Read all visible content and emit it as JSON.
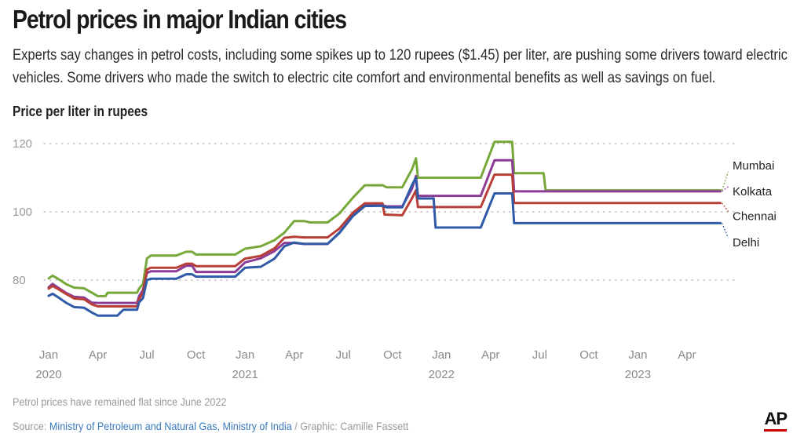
{
  "header": {
    "title": "Petrol prices in major Indian cities",
    "subtitle": "Experts say changes in petrol costs, including some spikes up to 120 rupees ($1.45) per liter, are pushing some drivers toward electric vehicles. Some drivers who made the switch to electric cite comfort and environmental benefits as well as savings on fuel.",
    "unit_label": "Price per liter in rupees"
  },
  "footer": {
    "note": "Petrol prices have remained flat since June 2022",
    "source_prefix": "Source: ",
    "source_link": "Ministry of Petroleum and Natural Gas, Ministry of India",
    "source_suffix": " / Graphic: Camille Fassett",
    "logo": "AP"
  },
  "chart_data": {
    "type": "line",
    "title": "Petrol prices in major Indian cities",
    "ylabel": "Price per liter in rupees",
    "xlabel": "",
    "ylim": [
      60,
      124
    ],
    "xlim": [
      2020.0,
      2023.43
    ],
    "grid": "horizontal dotted",
    "yticks": [
      {
        "value": 80,
        "label": "80"
      },
      {
        "value": 100,
        "label": "100"
      },
      {
        "value": 120,
        "label": "120"
      }
    ],
    "xticks": [
      {
        "t": 2020.0,
        "label": "Jan",
        "year": "2020"
      },
      {
        "t": 2020.25,
        "label": "Apr",
        "year": ""
      },
      {
        "t": 2020.5,
        "label": "Jul",
        "year": ""
      },
      {
        "t": 2020.75,
        "label": "Oct",
        "year": ""
      },
      {
        "t": 2021.0,
        "label": "Jan",
        "year": "2021"
      },
      {
        "t": 2021.25,
        "label": "Apr",
        "year": ""
      },
      {
        "t": 2021.5,
        "label": "Jul",
        "year": ""
      },
      {
        "t": 2021.75,
        "label": "Oct",
        "year": ""
      },
      {
        "t": 2022.0,
        "label": "Jan",
        "year": "2022"
      },
      {
        "t": 2022.25,
        "label": "Apr",
        "year": ""
      },
      {
        "t": 2022.5,
        "label": "Jul",
        "year": ""
      },
      {
        "t": 2022.75,
        "label": "Oct",
        "year": ""
      },
      {
        "t": 2023.0,
        "label": "Jan",
        "year": "2023"
      },
      {
        "t": 2023.25,
        "label": "Apr",
        "year": ""
      }
    ],
    "series": [
      {
        "name": "Mumbai",
        "color": "#76a83a",
        "points": [
          [
            2020.0,
            80.5
          ],
          [
            2020.02,
            81.3
          ],
          [
            2020.05,
            80.3
          ],
          [
            2020.09,
            78.8
          ],
          [
            2020.13,
            77.8
          ],
          [
            2020.18,
            77.6
          ],
          [
            2020.22,
            76.3
          ],
          [
            2020.25,
            75.3
          ],
          [
            2020.29,
            75.3
          ],
          [
            2020.3,
            76.3
          ],
          [
            2020.45,
            76.3
          ],
          [
            2020.46,
            77.5
          ],
          [
            2020.48,
            78.9
          ],
          [
            2020.5,
            86.3
          ],
          [
            2020.52,
            87.2
          ],
          [
            2020.65,
            87.2
          ],
          [
            2020.7,
            88.3
          ],
          [
            2020.73,
            88.3
          ],
          [
            2020.75,
            87.5
          ],
          [
            2020.95,
            87.5
          ],
          [
            2021.0,
            89.2
          ],
          [
            2021.08,
            89.9
          ],
          [
            2021.15,
            91.7
          ],
          [
            2021.2,
            93.9
          ],
          [
            2021.25,
            97.3
          ],
          [
            2021.3,
            97.3
          ],
          [
            2021.33,
            96.9
          ],
          [
            2021.42,
            96.9
          ],
          [
            2021.48,
            99.5
          ],
          [
            2021.55,
            104.2
          ],
          [
            2021.61,
            107.8
          ],
          [
            2021.7,
            107.8
          ],
          [
            2021.72,
            107.2
          ],
          [
            2021.8,
            107.2
          ],
          [
            2021.85,
            112.5
          ],
          [
            2021.87,
            115.7
          ],
          [
            2021.88,
            110.0
          ],
          [
            2022.2,
            110.0
          ],
          [
            2022.27,
            120.5
          ],
          [
            2022.36,
            120.5
          ],
          [
            2022.37,
            111.3
          ],
          [
            2022.52,
            111.3
          ],
          [
            2022.53,
            106.3
          ],
          [
            2023.42,
            106.3
          ]
        ]
      },
      {
        "name": "Kolkata",
        "color": "#8e3d97",
        "points": [
          [
            2020.0,
            77.9
          ],
          [
            2020.02,
            78.9
          ],
          [
            2020.05,
            77.7
          ],
          [
            2020.09,
            76.2
          ],
          [
            2020.13,
            75.1
          ],
          [
            2020.18,
            74.9
          ],
          [
            2020.22,
            73.4
          ],
          [
            2020.25,
            73.3
          ],
          [
            2020.3,
            73.3
          ],
          [
            2020.35,
            73.3
          ],
          [
            2020.45,
            73.3
          ],
          [
            2020.46,
            75.3
          ],
          [
            2020.48,
            77.1
          ],
          [
            2020.5,
            82.1
          ],
          [
            2020.52,
            82.6
          ],
          [
            2020.65,
            82.6
          ],
          [
            2020.7,
            84.2
          ],
          [
            2020.73,
            84.2
          ],
          [
            2020.75,
            82.4
          ],
          [
            2020.95,
            82.4
          ],
          [
            2021.0,
            85.2
          ],
          [
            2021.08,
            86.4
          ],
          [
            2021.15,
            88.5
          ],
          [
            2021.2,
            90.9
          ],
          [
            2021.25,
            90.9
          ],
          [
            2021.3,
            90.6
          ],
          [
            2021.42,
            90.6
          ],
          [
            2021.48,
            93.9
          ],
          [
            2021.55,
            99.0
          ],
          [
            2021.61,
            101.9
          ],
          [
            2021.7,
            101.9
          ],
          [
            2021.72,
            101.6
          ],
          [
            2021.8,
            101.6
          ],
          [
            2021.85,
            106.8
          ],
          [
            2021.87,
            110.5
          ],
          [
            2021.88,
            104.7
          ],
          [
            2022.2,
            104.7
          ],
          [
            2022.27,
            115.1
          ],
          [
            2022.36,
            115.1
          ],
          [
            2022.37,
            106.0
          ],
          [
            2023.42,
            106.0
          ]
        ]
      },
      {
        "name": "Chennai",
        "color": "#b83f36",
        "points": [
          [
            2020.0,
            77.5
          ],
          [
            2020.02,
            78.3
          ],
          [
            2020.05,
            77.3
          ],
          [
            2020.09,
            75.9
          ],
          [
            2020.13,
            74.6
          ],
          [
            2020.18,
            74.4
          ],
          [
            2020.22,
            72.9
          ],
          [
            2020.25,
            72.3
          ],
          [
            2020.3,
            72.3
          ],
          [
            2020.35,
            72.3
          ],
          [
            2020.45,
            72.3
          ],
          [
            2020.46,
            74.4
          ],
          [
            2020.48,
            76.3
          ],
          [
            2020.5,
            83.1
          ],
          [
            2020.52,
            83.6
          ],
          [
            2020.65,
            83.6
          ],
          [
            2020.7,
            84.8
          ],
          [
            2020.73,
            84.8
          ],
          [
            2020.75,
            84.1
          ],
          [
            2020.95,
            84.1
          ],
          [
            2021.0,
            86.3
          ],
          [
            2021.08,
            87.1
          ],
          [
            2021.15,
            89.3
          ],
          [
            2021.2,
            92.4
          ],
          [
            2021.25,
            92.7
          ],
          [
            2021.3,
            92.5
          ],
          [
            2021.42,
            92.5
          ],
          [
            2021.48,
            95.1
          ],
          [
            2021.55,
            99.8
          ],
          [
            2021.61,
            102.5
          ],
          [
            2021.7,
            102.5
          ],
          [
            2021.71,
            99.2
          ],
          [
            2021.8,
            99.0
          ],
          [
            2021.85,
            104.0
          ],
          [
            2021.87,
            106.3
          ],
          [
            2021.88,
            101.4
          ],
          [
            2022.2,
            101.4
          ],
          [
            2022.27,
            110.9
          ],
          [
            2022.36,
            110.9
          ],
          [
            2022.37,
            102.6
          ],
          [
            2023.42,
            102.6
          ]
        ]
      },
      {
        "name": "Delhi",
        "color": "#2f5aa8",
        "points": [
          [
            2020.0,
            75.4
          ],
          [
            2020.02,
            76.0
          ],
          [
            2020.05,
            74.9
          ],
          [
            2020.09,
            73.3
          ],
          [
            2020.13,
            72.1
          ],
          [
            2020.18,
            71.9
          ],
          [
            2020.22,
            70.5
          ],
          [
            2020.25,
            69.6
          ],
          [
            2020.3,
            69.6
          ],
          [
            2020.35,
            69.6
          ],
          [
            2020.38,
            71.3
          ],
          [
            2020.45,
            71.3
          ],
          [
            2020.46,
            73.5
          ],
          [
            2020.48,
            74.7
          ],
          [
            2020.5,
            80.0
          ],
          [
            2020.52,
            80.4
          ],
          [
            2020.65,
            80.4
          ],
          [
            2020.7,
            81.7
          ],
          [
            2020.73,
            81.7
          ],
          [
            2020.75,
            81.0
          ],
          [
            2020.95,
            81.0
          ],
          [
            2021.0,
            83.6
          ],
          [
            2021.08,
            83.9
          ],
          [
            2021.15,
            86.3
          ],
          [
            2021.2,
            89.9
          ],
          [
            2021.25,
            91.0
          ],
          [
            2021.3,
            90.6
          ],
          [
            2021.42,
            90.6
          ],
          [
            2021.48,
            93.8
          ],
          [
            2021.55,
            98.8
          ],
          [
            2021.61,
            101.7
          ],
          [
            2021.7,
            101.8
          ],
          [
            2021.72,
            101.3
          ],
          [
            2021.8,
            101.3
          ],
          [
            2021.85,
            107.9
          ],
          [
            2021.87,
            110.0
          ],
          [
            2021.88,
            103.9
          ],
          [
            2021.96,
            103.9
          ],
          [
            2021.97,
            95.4
          ],
          [
            2022.2,
            95.4
          ],
          [
            2022.27,
            105.4
          ],
          [
            2022.36,
            105.4
          ],
          [
            2022.37,
            96.7
          ],
          [
            2023.42,
            96.7
          ]
        ]
      }
    ],
    "labels": [
      {
        "series": "Mumbai",
        "text": "Mumbai",
        "y": 113.6
      },
      {
        "series": "Kolkata",
        "text": "Kolkata",
        "y": 106.0
      },
      {
        "series": "Chennai",
        "text": "Chennai",
        "y": 98.7
      },
      {
        "series": "Delhi",
        "text": "Delhi",
        "y": 91.0
      }
    ]
  }
}
